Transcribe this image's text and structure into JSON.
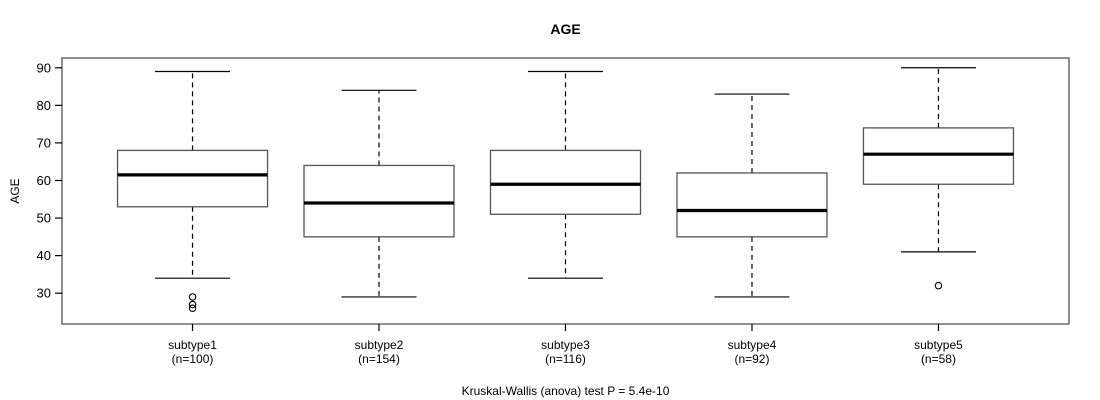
{
  "title": "AGE",
  "y_axis_label": "AGE",
  "footnote": "Kruskal-Wallis (anova) test P = 5.4e-10",
  "chart_data": {
    "type": "box",
    "title": "AGE",
    "ylabel": "AGE",
    "xlabel": "",
    "footnote": "Kruskal-Wallis (anova) test P = 5.4e-10",
    "grid": false,
    "legend": null,
    "y_ticks": [
      30,
      40,
      50,
      60,
      70,
      80,
      90
    ],
    "ylim": [
      21.8,
      92.6
    ],
    "groups": [
      {
        "label": "subtype1",
        "n_label": "(n=100)",
        "n": 100,
        "whisker_low": 34,
        "q1": 53,
        "median": 61.5,
        "q3": 68,
        "whisker_high": 89,
        "outliers": [
          29,
          27,
          26
        ]
      },
      {
        "label": "subtype2",
        "n_label": "(n=154)",
        "n": 154,
        "whisker_low": 29,
        "q1": 45,
        "median": 54,
        "q3": 64,
        "whisker_high": 84,
        "outliers": []
      },
      {
        "label": "subtype3",
        "n_label": "(n=116)",
        "n": 116,
        "whisker_low": 34,
        "q1": 51,
        "median": 59,
        "q3": 68,
        "whisker_high": 89,
        "outliers": []
      },
      {
        "label": "subtype4",
        "n_label": "(n=92)",
        "n": 92,
        "whisker_low": 29,
        "q1": 45,
        "median": 52,
        "q3": 62,
        "whisker_high": 83,
        "outliers": []
      },
      {
        "label": "subtype5",
        "n_label": "(n=58)",
        "n": 58,
        "whisker_low": 41,
        "q1": 59,
        "median": 67,
        "q3": 74,
        "whisker_high": 90,
        "outliers": [
          32
        ]
      }
    ],
    "colors": {
      "line": "#000000",
      "box_border": "#555555",
      "frame": "#555555",
      "background": "#ffffff"
    }
  }
}
